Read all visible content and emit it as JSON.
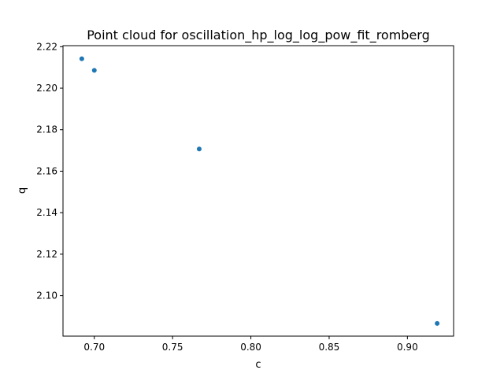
{
  "chart_data": {
    "type": "scatter",
    "title": "Point cloud for oscillation_hp_log_log_pow_fit_romberg",
    "xlabel": "c",
    "ylabel": "q",
    "xlim": [
      0.68,
      0.9295
    ],
    "ylim": [
      2.0805,
      2.2205
    ],
    "xticks": [
      0.7,
      0.75,
      0.8,
      0.85,
      0.9
    ],
    "xtick_labels": [
      "0.70",
      "0.75",
      "0.80",
      "0.85",
      "0.90"
    ],
    "yticks": [
      2.1,
      2.12,
      2.14,
      2.16,
      2.18,
      2.2,
      2.22
    ],
    "ytick_labels": [
      "2.10",
      "2.12",
      "2.14",
      "2.16",
      "2.18",
      "2.20",
      "2.22"
    ],
    "grid": false,
    "legend": "none",
    "marker_color": "#1f77b4",
    "points": [
      {
        "x": 0.692,
        "y": 2.2142
      },
      {
        "x": 0.7,
        "y": 2.2086
      },
      {
        "x": 0.767,
        "y": 2.1707
      },
      {
        "x": 0.919,
        "y": 2.0866
      }
    ]
  }
}
